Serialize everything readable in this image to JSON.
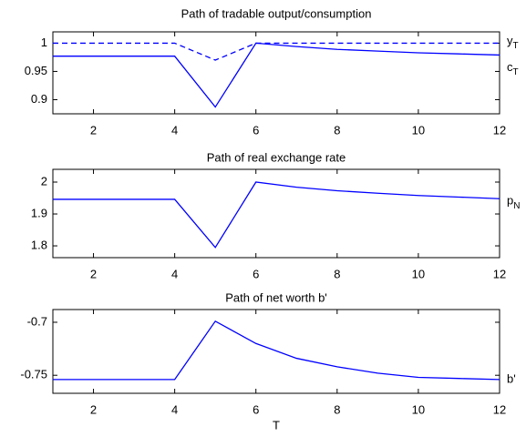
{
  "chart_data": [
    {
      "type": "line",
      "title": "Path of tradable output/consumption",
      "x": [
        1,
        2,
        3,
        4,
        5,
        6,
        7,
        8,
        9,
        10,
        11,
        12
      ],
      "series": [
        {
          "name": "y",
          "subscript": "T",
          "color": "#0000ff",
          "linestyle": "dashed",
          "values": [
            1,
            1,
            1,
            1,
            0.97,
            1,
            1,
            1,
            1,
            1,
            1,
            1
          ]
        },
        {
          "name": "c",
          "subscript": "T",
          "color": "#0000ff",
          "linestyle": "solid",
          "values": [
            0.977,
            0.977,
            0.977,
            0.977,
            0.887,
            1,
            0.994,
            0.989,
            0.986,
            0.983,
            0.981,
            0.979
          ]
        }
      ],
      "xlim": [
        1,
        12
      ],
      "xticks": [
        2,
        4,
        6,
        8,
        10,
        12
      ],
      "ylim": [
        0.875,
        1.02
      ],
      "yticks": [
        0.9,
        0.95,
        1
      ]
    },
    {
      "type": "line",
      "title": "Path of real exchange rate",
      "x": [
        1,
        2,
        3,
        4,
        5,
        6,
        7,
        8,
        9,
        10,
        11,
        12
      ],
      "series": [
        {
          "name": "p",
          "subscript": "N",
          "color": "#0000ff",
          "linestyle": "solid",
          "values": [
            1.946,
            1.946,
            1.946,
            1.946,
            1.795,
            2.0,
            1.984,
            1.973,
            1.965,
            1.958,
            1.953,
            1.948
          ]
        }
      ],
      "xlim": [
        1,
        12
      ],
      "xticks": [
        2,
        4,
        6,
        8,
        10,
        12
      ],
      "ylim": [
        1.763,
        2.04
      ],
      "yticks": [
        1.8,
        1.9,
        2
      ]
    },
    {
      "type": "line",
      "title": "Path of net worth b'",
      "xlabel": "T",
      "x": [
        1,
        2,
        3,
        4,
        5,
        6,
        7,
        8,
        9,
        10,
        11,
        12
      ],
      "series": [
        {
          "name": "b'",
          "color": "#0000ff",
          "linestyle": "solid",
          "values": [
            -0.754,
            -0.754,
            -0.754,
            -0.754,
            -0.699,
            -0.72,
            -0.734,
            -0.742,
            -0.748,
            -0.752,
            -0.753,
            -0.754
          ]
        }
      ],
      "xlim": [
        1,
        12
      ],
      "xticks": [
        2,
        4,
        6,
        8,
        10,
        12
      ],
      "ylim": [
        -0.767,
        -0.688
      ],
      "yticks": [
        -0.75,
        -0.7
      ]
    }
  ]
}
